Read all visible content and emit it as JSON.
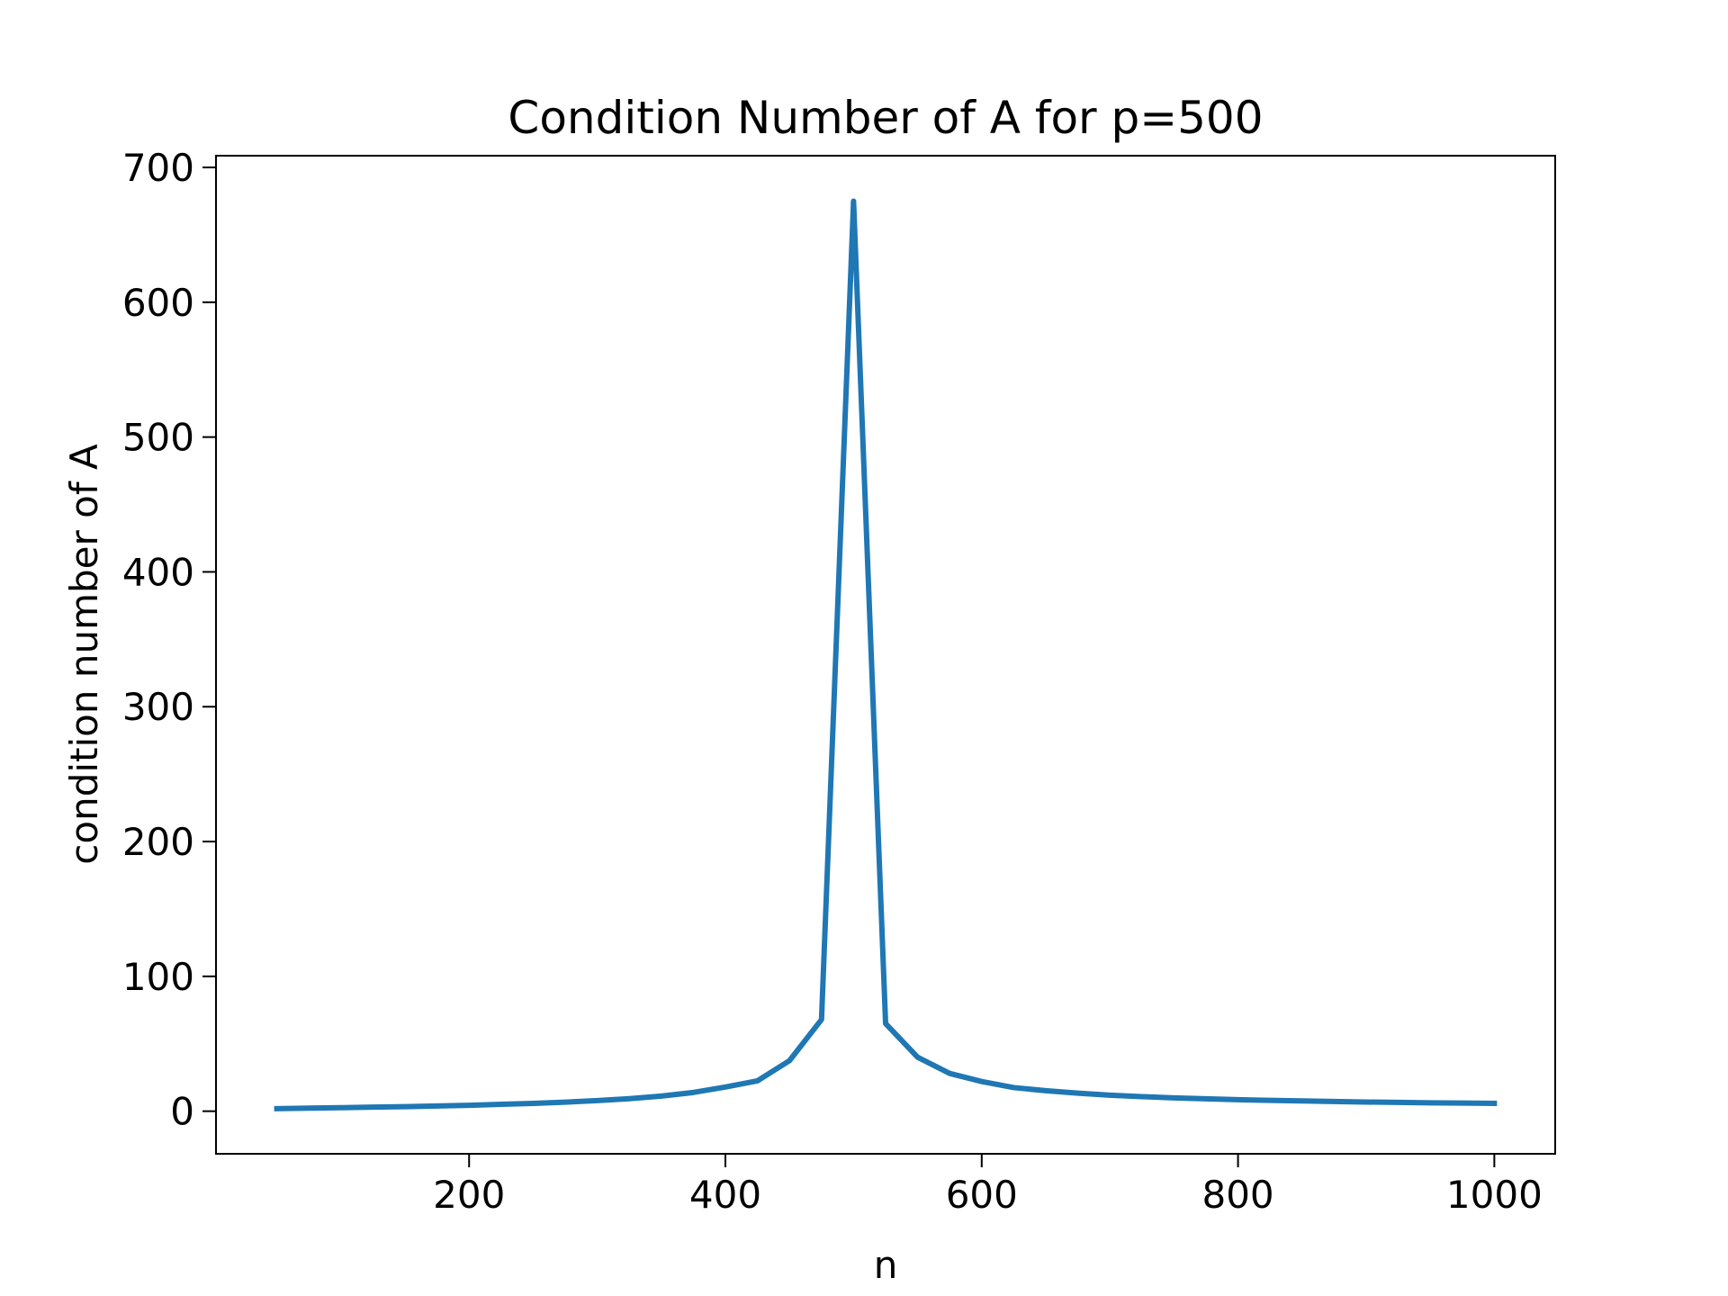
{
  "chart_data": {
    "type": "line",
    "title": "Condition Number of A for p=500",
    "xlabel": "n",
    "ylabel": "condition number of A",
    "x": [
      50,
      75,
      100,
      125,
      150,
      175,
      200,
      225,
      250,
      275,
      300,
      325,
      350,
      375,
      400,
      425,
      450,
      475,
      500,
      525,
      550,
      575,
      600,
      625,
      650,
      675,
      700,
      725,
      750,
      775,
      800,
      825,
      850,
      875,
      900,
      925,
      950,
      975,
      1000
    ],
    "series": [
      {
        "name": "condition number",
        "color": "#1f77b4",
        "values": [
          1.9,
          2.3,
          2.6,
          3.0,
          3.4,
          3.9,
          4.4,
          5.1,
          5.8,
          6.7,
          7.9,
          9.3,
          11.2,
          13.9,
          17.9,
          22.5,
          37.5,
          68,
          675,
          65,
          40,
          28,
          22,
          17.5,
          15.2,
          13.4,
          11.9,
          10.8,
          9.9,
          9.2,
          8.5,
          8.0,
          7.6,
          7.2,
          6.8,
          6.5,
          6.2,
          6.0,
          5.8
        ]
      }
    ],
    "xlim": [
      2.5,
      1047.5
    ],
    "ylim": [
      -31.6,
      708.7
    ],
    "xticks": [
      200,
      400,
      600,
      800,
      1000
    ],
    "yticks": [
      0,
      100,
      200,
      300,
      400,
      500,
      600,
      700
    ]
  }
}
